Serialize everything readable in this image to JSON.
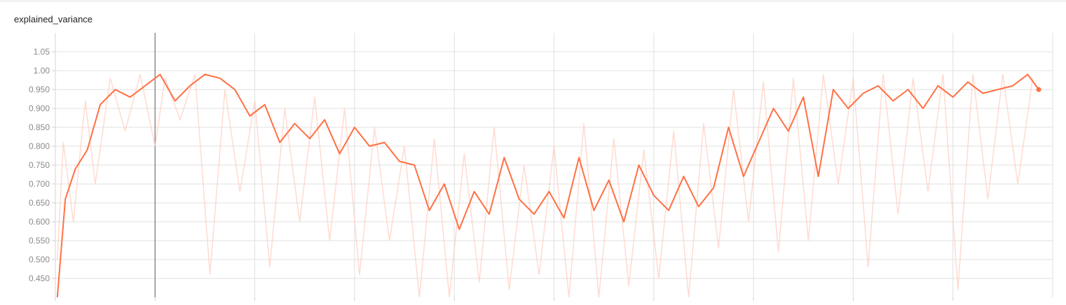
{
  "chart_data": {
    "type": "line",
    "title": "explained_variance",
    "xlabel": "",
    "ylabel": "",
    "ylim": [
      0.4,
      1.1
    ],
    "y_ticks": [
      "0.450",
      "0.500",
      "0.550",
      "0.600",
      "0.650",
      "0.700",
      "0.750",
      "0.800",
      "0.850",
      "0.900",
      "0.950",
      "1.00",
      "1.05"
    ],
    "x_tick_labels_visible": false,
    "grid": true,
    "series": [
      {
        "role": "smoothed",
        "color": "#ff7043",
        "x": [
          0.02,
          0.1,
          0.2,
          0.32,
          0.45,
          0.6,
          0.75,
          0.9,
          1.05,
          1.2,
          1.35,
          1.5,
          1.65,
          1.8,
          1.95,
          2.1,
          2.25,
          2.4,
          2.55,
          2.7,
          2.85,
          3.0,
          3.15,
          3.3,
          3.45,
          3.6,
          3.75,
          3.9,
          4.05,
          4.2,
          4.35,
          4.5,
          4.65,
          4.8,
          4.95,
          5.1,
          5.25,
          5.4,
          5.55,
          5.7,
          5.85,
          6.0,
          6.15,
          6.3,
          6.45,
          6.6,
          6.75,
          6.9,
          7.05,
          7.2,
          7.35,
          7.5,
          7.65,
          7.8,
          7.95,
          8.1,
          8.25,
          8.4,
          8.55,
          8.7,
          8.85,
          9.0,
          9.15,
          9.3,
          9.45,
          9.6,
          9.75,
          9.86
        ],
        "values": [
          0.4,
          0.66,
          0.74,
          0.79,
          0.91,
          0.95,
          0.93,
          0.96,
          0.99,
          0.92,
          0.96,
          0.99,
          0.98,
          0.95,
          0.88,
          0.91,
          0.81,
          0.86,
          0.82,
          0.87,
          0.78,
          0.85,
          0.8,
          0.81,
          0.76,
          0.75,
          0.63,
          0.7,
          0.58,
          0.68,
          0.62,
          0.77,
          0.66,
          0.62,
          0.68,
          0.61,
          0.77,
          0.63,
          0.71,
          0.6,
          0.75,
          0.67,
          0.63,
          0.72,
          0.64,
          0.69,
          0.85,
          0.72,
          0.81,
          0.9,
          0.84,
          0.93,
          0.72,
          0.95,
          0.9,
          0.94,
          0.96,
          0.92,
          0.95,
          0.9,
          0.96,
          0.93,
          0.97,
          0.94,
          0.95,
          0.96,
          0.99,
          0.95
        ]
      },
      {
        "role": "raw",
        "color": "#ffccbc",
        "x": [
          0.02,
          0.08,
          0.18,
          0.3,
          0.4,
          0.55,
          0.7,
          0.85,
          1.0,
          1.1,
          1.25,
          1.4,
          1.55,
          1.7,
          1.85,
          2.0,
          2.15,
          2.3,
          2.45,
          2.6,
          2.75,
          2.9,
          3.05,
          3.2,
          3.35,
          3.5,
          3.65,
          3.8,
          3.95,
          4.1,
          4.25,
          4.4,
          4.55,
          4.7,
          4.85,
          5.0,
          5.15,
          5.3,
          5.45,
          5.6,
          5.75,
          5.9,
          6.05,
          6.2,
          6.35,
          6.5,
          6.65,
          6.8,
          6.95,
          7.1,
          7.25,
          7.4,
          7.55,
          7.7,
          7.85,
          8.0,
          8.15,
          8.3,
          8.45,
          8.6,
          8.75,
          8.9,
          9.05,
          9.2,
          9.35,
          9.5,
          9.65,
          9.8
        ],
        "values": [
          0.5,
          0.81,
          0.6,
          0.92,
          0.7,
          0.98,
          0.84,
          0.99,
          0.8,
          0.98,
          0.87,
          0.99,
          0.46,
          0.95,
          0.68,
          0.92,
          0.48,
          0.9,
          0.6,
          0.93,
          0.55,
          0.9,
          0.46,
          0.85,
          0.55,
          0.8,
          0.4,
          0.82,
          0.4,
          0.78,
          0.44,
          0.85,
          0.42,
          0.75,
          0.46,
          0.8,
          0.4,
          0.86,
          0.4,
          0.82,
          0.43,
          0.79,
          0.45,
          0.84,
          0.4,
          0.86,
          0.53,
          0.95,
          0.6,
          0.97,
          0.52,
          0.98,
          0.55,
          0.99,
          0.7,
          0.98,
          0.48,
          0.99,
          0.62,
          0.98,
          0.68,
          0.99,
          0.42,
          0.99,
          0.66,
          0.99,
          0.7,
          0.98
        ]
      }
    ]
  }
}
